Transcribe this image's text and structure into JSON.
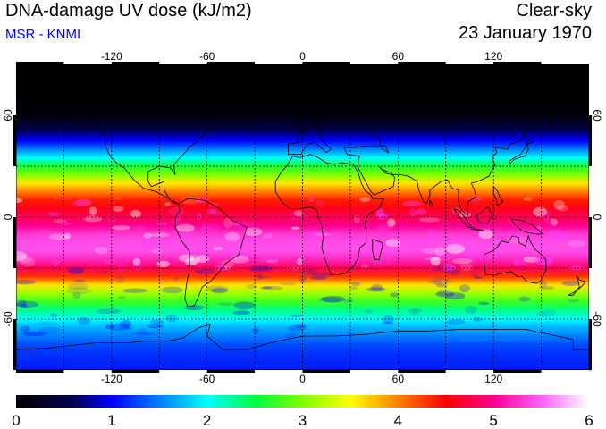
{
  "header": {
    "title": "DNA-damage UV dose (kJ/m2)",
    "subtitle": "MSR - KNMI",
    "subtitle_color": "#0000ff",
    "conditions": "Clear-sky",
    "date": "23 January 1970"
  },
  "map": {
    "projection": "equirectangular",
    "lon_range": [
      -180,
      180
    ],
    "lat_range": [
      -90,
      90
    ],
    "lon_ticks": [
      -120,
      -60,
      0,
      60,
      120
    ],
    "lat_ticks": [
      60,
      0,
      -60
    ],
    "lon_tick_labels": [
      "-120",
      "-60",
      "0",
      "60",
      "120"
    ],
    "lat_tick_labels": [
      "60",
      "0",
      "-60"
    ],
    "grid": "dashed black",
    "coastlines": "black outline"
  },
  "colorbar": {
    "min": 0,
    "max": 6,
    "labels": [
      "0",
      "1",
      "2",
      "3",
      "4",
      "5",
      "6"
    ],
    "stops": [
      {
        "value": 0,
        "color": "#000000"
      },
      {
        "value": 0.6,
        "color": "#000050"
      },
      {
        "value": 1.0,
        "color": "#0000ff"
      },
      {
        "value": 1.5,
        "color": "#0080ff"
      },
      {
        "value": 2.0,
        "color": "#00ffff"
      },
      {
        "value": 2.5,
        "color": "#00ff40"
      },
      {
        "value": 3.0,
        "color": "#80ff00"
      },
      {
        "value": 3.5,
        "color": "#ffff00"
      },
      {
        "value": 4.0,
        "color": "#ff8000"
      },
      {
        "value": 4.5,
        "color": "#ff0000"
      },
      {
        "value": 5.0,
        "color": "#ff0090"
      },
      {
        "value": 5.5,
        "color": "#ff60ff"
      },
      {
        "value": 6.0,
        "color": "#ffffff"
      }
    ]
  },
  "chart_data": {
    "type": "heatmap",
    "title": "DNA-damage UV dose (kJ/m2)",
    "zlim": [
      0,
      6
    ],
    "zonal_profile": {
      "lat": [
        90,
        70,
        60,
        52,
        45,
        40,
        35,
        30,
        25,
        20,
        15,
        10,
        5,
        0,
        -5,
        -10,
        -15,
        -20,
        -25,
        -30,
        -35,
        -40,
        -45,
        -50,
        -55,
        -60,
        -65,
        -70,
        -75,
        -80,
        -90
      ],
      "dose": [
        0,
        0,
        0.1,
        0.5,
        1.0,
        1.5,
        2.0,
        2.6,
        3.0,
        3.6,
        4.0,
        4.4,
        4.6,
        4.8,
        5.0,
        5.3,
        5.4,
        5.4,
        5.2,
        4.8,
        4.3,
        3.6,
        3.1,
        2.7,
        2.3,
        2.0,
        1.7,
        1.5,
        1.3,
        1.2,
        1.1
      ]
    }
  }
}
